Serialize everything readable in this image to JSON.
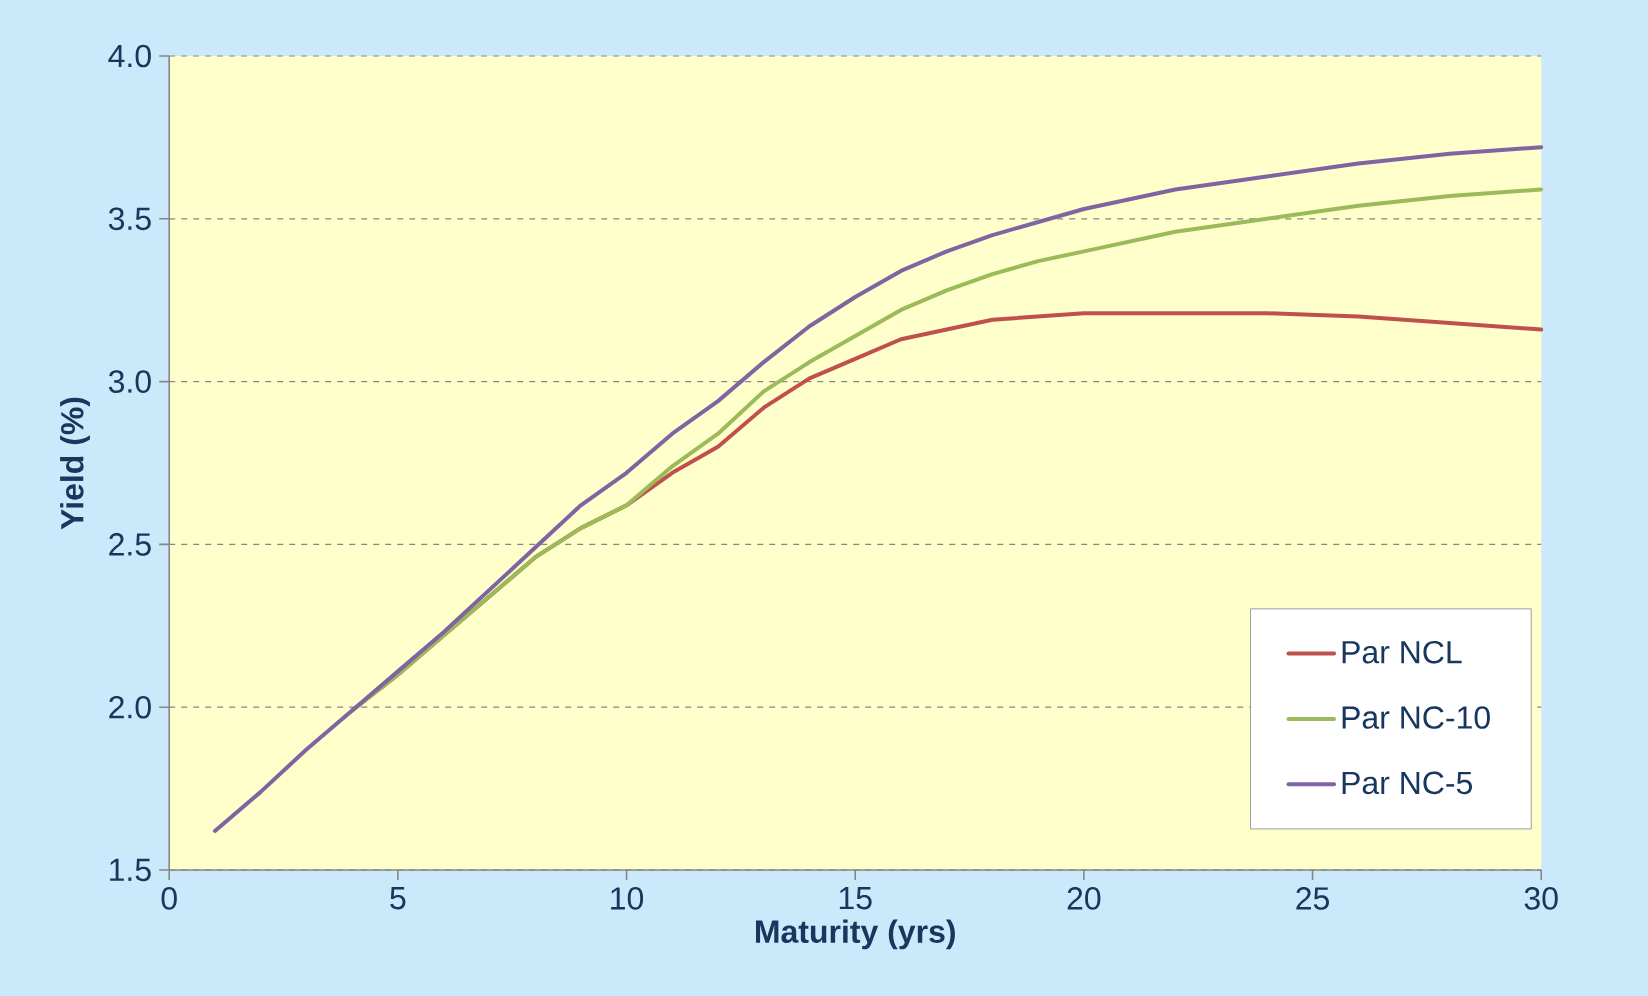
{
  "chart_data": {
    "type": "line",
    "xlabel": "Maturity (yrs)",
    "ylabel": "Yield (%)",
    "x": [
      1,
      2,
      3,
      4,
      5,
      6,
      7,
      8,
      9,
      10,
      11,
      12,
      13,
      14,
      15,
      16,
      17,
      18,
      19,
      20,
      22,
      24,
      26,
      28,
      30
    ],
    "series": [
      {
        "name": "Par NCL",
        "color": "#c0504d",
        "values": [
          null,
          null,
          null,
          1.99,
          2.1,
          2.22,
          2.34,
          2.46,
          2.55,
          2.62,
          2.72,
          2.8,
          2.92,
          3.01,
          3.07,
          3.13,
          3.16,
          3.19,
          3.2,
          3.21,
          3.21,
          3.21,
          3.2,
          3.18,
          3.16
        ]
      },
      {
        "name": "Par NC-10",
        "color": "#9bbb59",
        "values": [
          null,
          null,
          null,
          1.99,
          2.1,
          2.22,
          2.34,
          2.46,
          2.55,
          2.62,
          2.74,
          2.84,
          2.97,
          3.06,
          3.14,
          3.22,
          3.28,
          3.33,
          3.37,
          3.4,
          3.46,
          3.5,
          3.54,
          3.57,
          3.59
        ]
      },
      {
        "name": "Par NC-5",
        "color": "#8064a2",
        "values": [
          1.62,
          1.74,
          1.87,
          1.99,
          2.11,
          2.23,
          2.36,
          2.49,
          2.62,
          2.72,
          2.84,
          2.94,
          3.06,
          3.17,
          3.26,
          3.34,
          3.4,
          3.45,
          3.49,
          3.53,
          3.59,
          3.63,
          3.67,
          3.7,
          3.72
        ]
      }
    ],
    "xlim": [
      0,
      30
    ],
    "xticks": [
      0,
      5,
      10,
      15,
      20,
      25,
      30
    ],
    "ylim": [
      1.5,
      4.0
    ],
    "yticks": [
      1.5,
      {
        "value": 2.0,
        "label": "2.0"
      },
      2.5,
      {
        "value": 3.0,
        "label": "3.0"
      },
      3.5,
      {
        "value": 4.0,
        "label": "4.0"
      }
    ],
    "grid": "y",
    "legend": "bottom right",
    "marker": "none",
    "line_style": "solid"
  }
}
